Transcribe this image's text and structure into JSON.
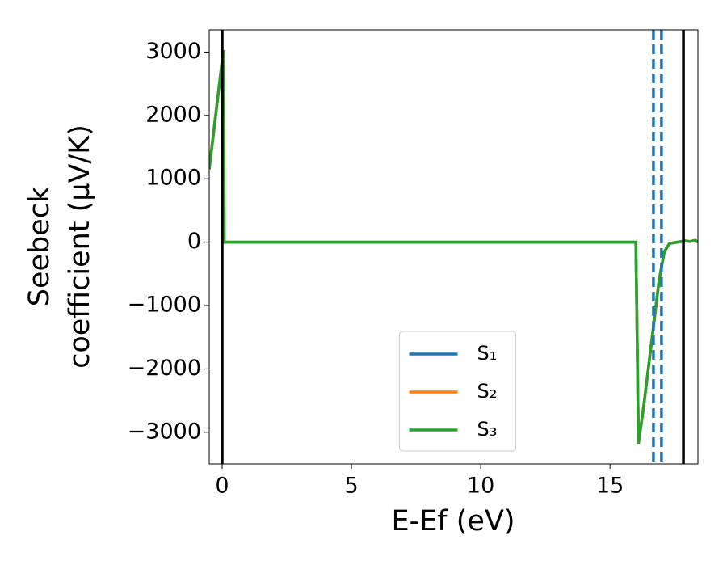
{
  "chart_data": {
    "type": "line",
    "xlabel": "E-Ef (eV)",
    "ylabel": [
      "Seebeck",
      "coefficient  (μV/K)"
    ],
    "x": [
      -0.5,
      0.05,
      0.08,
      16.0,
      16.05,
      16.1,
      16.3,
      16.6,
      16.9,
      17.1,
      17.3,
      17.6,
      17.9,
      18.1,
      18.3,
      18.4
    ],
    "series": [
      {
        "name": "S₁",
        "color": "#1f77b4",
        "values": [
          1150,
          3030,
          0,
          0,
          -1500,
          -3180,
          -2600,
          -1600,
          -600,
          -150,
          -20,
          0,
          20,
          10,
          30,
          0
        ]
      },
      {
        "name": "S₂",
        "color": "#ff7f0e",
        "values": [
          1150,
          3030,
          0,
          0,
          -1500,
          -3180,
          -2600,
          -1600,
          -600,
          -150,
          -20,
          0,
          20,
          10,
          30,
          0
        ]
      },
      {
        "name": "S₃",
        "color": "#2ca02c",
        "values": [
          1150,
          3030,
          0,
          0,
          -1500,
          -3180,
          -2600,
          -1600,
          -600,
          -150,
          -20,
          0,
          20,
          10,
          30,
          0
        ]
      }
    ],
    "vlines": [
      {
        "x": 0,
        "color": "#000000",
        "dashed": false
      },
      {
        "x": 17.84,
        "color": "#000000",
        "dashed": false
      },
      {
        "x": 16.68,
        "color": "#1f77b4",
        "dashed": true
      },
      {
        "x": 16.99,
        "color": "#1f77b4",
        "dashed": true
      }
    ],
    "xlim": [
      -0.5,
      18.4
    ],
    "ylim": [
      -3500,
      3350
    ],
    "xticks": [
      0,
      5,
      10,
      15
    ],
    "yticks": [
      {
        "value": -3000,
        "label": "−3000"
      },
      {
        "value": -2000,
        "label": "−2000"
      },
      {
        "value": -1000,
        "label": "−1000"
      },
      0,
      1000,
      2000,
      3000
    ],
    "legend": "lower center"
  }
}
